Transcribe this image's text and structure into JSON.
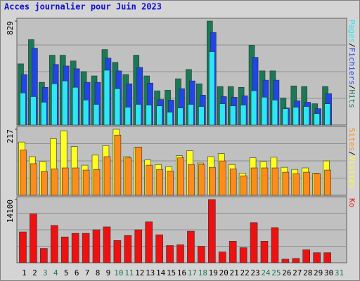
{
  "title": "Acces journalier pour Juin 2023",
  "chart_data": [
    {
      "type": "bar",
      "ylim": [
        0,
        829
      ],
      "yticks": [
        829
      ],
      "grid": true,
      "legend_separator": "/",
      "series": [
        {
          "name": "Hits",
          "color": "#1a7a55",
          "values": [
            488,
            681,
            341,
            557,
            557,
            511,
            426,
            392,
            602,
            500,
            403,
            557,
            392,
            273,
            278,
            369,
            443,
            329,
            829,
            307,
            307,
            301,
            636,
            432,
            432,
            216,
            312,
            307,
            170,
            307,
            null
          ]
        },
        {
          "name": "Fichiers",
          "color": "#2045e8",
          "values": [
            403,
            613,
            301,
            483,
            471,
            449,
            341,
            341,
            534,
            432,
            329,
            460,
            335,
            204,
            199,
            290,
            352,
            239,
            738,
            227,
            222,
            233,
            540,
            358,
            358,
            136,
            193,
            182,
            131,
            250,
            null
          ]
        },
        {
          "name": "Pages",
          "color": "#2ee6f5",
          "values": [
            256,
            227,
            182,
            329,
            352,
            301,
            199,
            165,
            437,
            290,
            142,
            165,
            159,
            153,
            102,
            136,
            165,
            148,
            585,
            170,
            153,
            159,
            273,
            222,
            199,
            131,
            142,
            148,
            91,
            170,
            null
          ]
        }
      ]
    },
    {
      "type": "bar",
      "ylim": [
        0,
        217
      ],
      "yticks": [
        217
      ],
      "grid": true,
      "legend_separator": "/",
      "series": [
        {
          "name": "Visites",
          "color": "#ffff20",
          "values": [
            175,
            127,
            111,
            186,
            212,
            160,
            99,
            132,
            163,
            217,
            127,
            158,
            116,
            101,
            94,
            130,
            146,
            106,
            127,
            137,
            101,
            73,
            123,
            111,
            125,
            92,
            85,
            90,
            73,
            113,
            null
          ]
        },
        {
          "name": "Sites",
          "color": "#ff8c1a",
          "values": [
            149,
            104,
            78,
            87,
            90,
            90,
            83,
            85,
            127,
            198,
            123,
            158,
            99,
            85,
            80,
            123,
            101,
            101,
            92,
            113,
            87,
            64,
            90,
            90,
            90,
            76,
            71,
            76,
            71,
            83,
            null
          ]
        }
      ]
    },
    {
      "type": "bar",
      "ylim": [
        0,
        14100
      ],
      "yticks": [
        14100
      ],
      "grid": true,
      "categories": [
        "1",
        "2",
        "3",
        "4",
        "5",
        "6",
        "7",
        "8",
        "9",
        "10",
        "11",
        "12",
        "13",
        "14",
        "15",
        "16",
        "17",
        "18",
        "19",
        "20",
        "21",
        "22",
        "23",
        "24",
        "25",
        "26",
        "27",
        "28",
        "29",
        "30",
        "31"
      ],
      "category_colors": [
        "#000000",
        "#000000",
        "#1a7a55",
        "#1a7a55",
        "#000000",
        "#000000",
        "#000000",
        "#000000",
        "#000000",
        "#1a7a55",
        "#1a7a55",
        "#000000",
        "#000000",
        "#000000",
        "#000000",
        "#000000",
        "#1a7a55",
        "#1a7a55",
        "#000000",
        "#000000",
        "#000000",
        "#000000",
        "#000000",
        "#1a7a55",
        "#1a7a55",
        "#000000",
        "#000000",
        "#000000",
        "#000000",
        "#000000",
        "#1a7a55"
      ],
      "series": [
        {
          "name": "Ko",
          "color": "#ee1111",
          "values": [
            6880,
            10880,
            3200,
            8320,
            5760,
            6560,
            6560,
            7360,
            8000,
            4960,
            6080,
            7360,
            9120,
            6240,
            3840,
            4000,
            7040,
            3680,
            14100,
            2400,
            4800,
            3360,
            8960,
            4800,
            7840,
            800,
            960,
            2880,
            2240,
            2240,
            null
          ]
        }
      ]
    }
  ]
}
